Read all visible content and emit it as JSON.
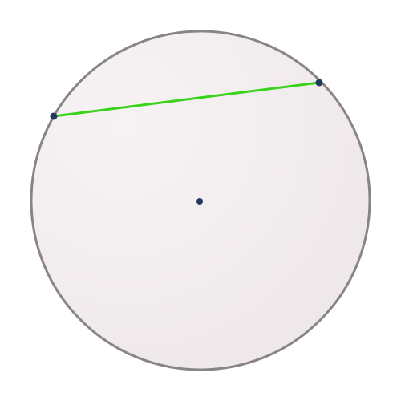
{
  "diagram": {
    "circle": {
      "fill_color": "#ede6e8",
      "fill_highlight": "#f7f3f4",
      "stroke_color": "#8a8585"
    },
    "chord": {
      "color": "#38d31a"
    },
    "points": {
      "color": "#22395f",
      "labels": []
    }
  }
}
